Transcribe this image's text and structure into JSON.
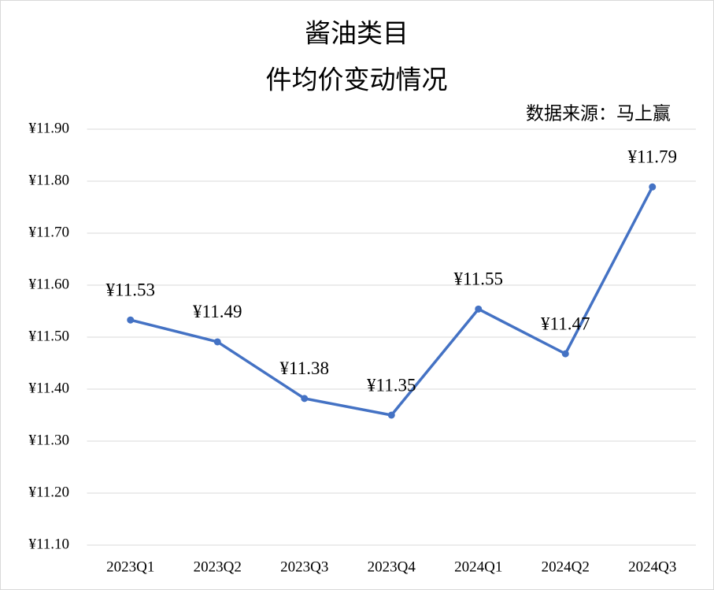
{
  "chart_data": {
    "type": "line",
    "title": [
      "酱油类目",
      "件均价变动情况"
    ],
    "source": "数据来源：马上赢",
    "categories": [
      "2023Q1",
      "2023Q2",
      "2023Q3",
      "2023Q4",
      "2024Q1",
      "2024Q2",
      "2024Q3"
    ],
    "values": [
      11.533,
      11.491,
      11.382,
      11.35,
      11.554,
      11.468,
      11.789
    ],
    "value_labels": [
      "¥11.53",
      "¥11.49",
      "¥11.38",
      "¥11.35",
      "¥11.55",
      "¥11.47",
      "¥11.79"
    ],
    "color": "#4472c4",
    "ylim": [
      11.1,
      11.9
    ],
    "yticks": [
      {
        "value": 11.1,
        "label": "¥11.10"
      },
      {
        "value": 11.2,
        "label": "¥11.20"
      },
      {
        "value": 11.3,
        "label": "¥11.30"
      },
      {
        "value": 11.4,
        "label": "¥11.40"
      },
      {
        "value": 11.5,
        "label": "¥11.50"
      },
      {
        "value": 11.6,
        "label": "¥11.60"
      },
      {
        "value": 11.7,
        "label": "¥11.70"
      },
      {
        "value": 11.8,
        "label": "¥11.80"
      },
      {
        "value": 11.9,
        "label": "¥11.90"
      }
    ],
    "grid": true
  }
}
